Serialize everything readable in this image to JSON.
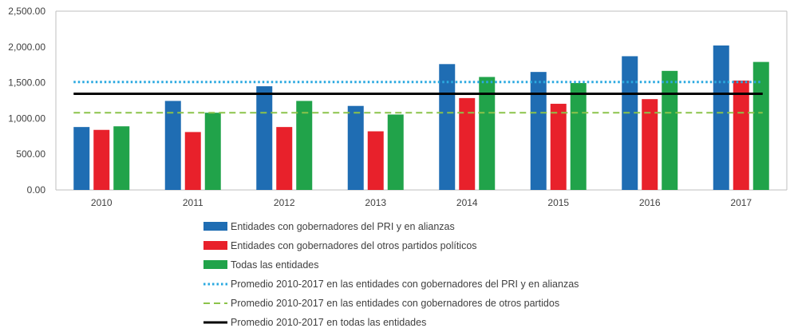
{
  "chart_data": {
    "type": "bar",
    "categories": [
      "2010",
      "2011",
      "2012",
      "2013",
      "2014",
      "2015",
      "2016",
      "2017"
    ],
    "ylim": [
      0,
      2500
    ],
    "yticks": [
      "0.00",
      "500.00",
      "1,000.00",
      "1,500.00",
      "2,000.00",
      "2,500.00"
    ],
    "grid": false,
    "legend_position": "bottom",
    "series": [
      {
        "name": "Entidades con gobernadores del PRI y en alianzas",
        "kind": "bar",
        "color": "#1f6db3",
        "values": [
          880,
          1245,
          1450,
          1175,
          1760,
          1650,
          1870,
          2020
        ]
      },
      {
        "name": "Entidades con gobernadores del otros partidos políticos",
        "kind": "bar",
        "color": "#e8212b",
        "values": [
          840,
          810,
          880,
          820,
          1285,
          1205,
          1270,
          1530
        ]
      },
      {
        "name": "Todas las entidades",
        "kind": "bar",
        "color": "#21a34a",
        "values": [
          890,
          1080,
          1245,
          1055,
          1580,
          1495,
          1665,
          1790
        ]
      }
    ],
    "reference_lines": [
      {
        "name": "Promedio 2010-2017 en las entidades con gobernadores del PRI y en alianzas",
        "value": 1510,
        "style": "dotted",
        "color": "#2aa9e0"
      },
      {
        "name": "Promedio 2010-2017 en las entidades con gobernadores de otros partidos",
        "value": 1080,
        "style": "dashed",
        "color": "#8cc34a"
      },
      {
        "name": "Promedio 2010-2017 en todas las entidades",
        "value": 1345,
        "style": "solid",
        "color": "#000000"
      }
    ]
  }
}
